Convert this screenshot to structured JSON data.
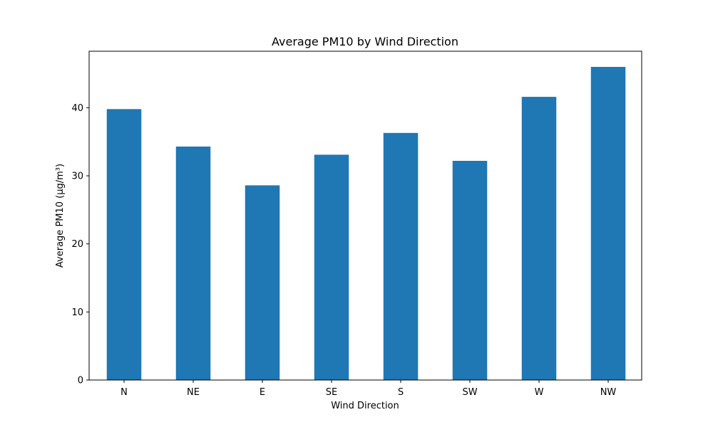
{
  "chart_data": {
    "type": "bar",
    "title": "Average PM10 by Wind Direction",
    "xlabel": "Wind Direction",
    "ylabel": "Average PM10 (µg/m³)",
    "categories": [
      "N",
      "NE",
      "E",
      "SE",
      "S",
      "SW",
      "W",
      "NW"
    ],
    "values": [
      39.8,
      34.3,
      28.6,
      33.1,
      36.3,
      32.2,
      41.6,
      46.0
    ],
    "ylim": [
      0,
      48.3
    ],
    "yticks": [
      0,
      10,
      20,
      30,
      40
    ],
    "grid": false,
    "legend": "none",
    "bar_color": "#1f77b4"
  }
}
